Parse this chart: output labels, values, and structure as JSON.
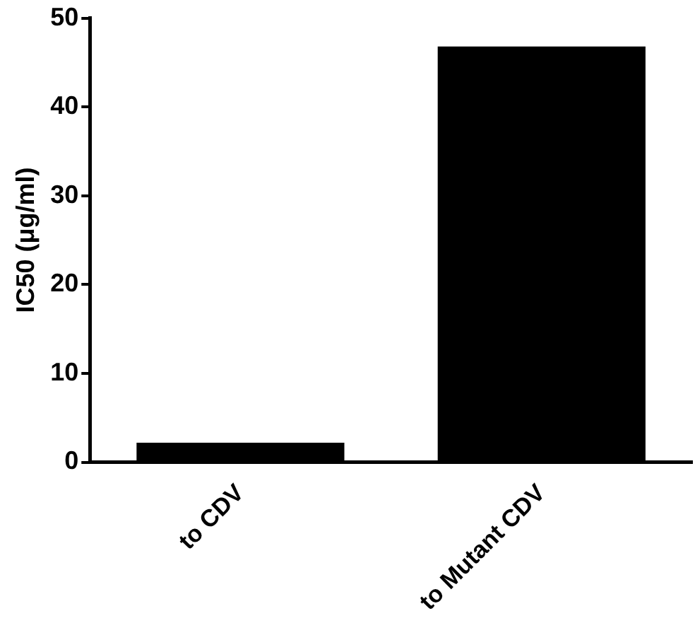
{
  "chart_data": {
    "type": "bar",
    "ylabel": "IC50 (μg/ml)",
    "categories": [
      "to CDV",
      "to Mutant CDV"
    ],
    "values": [
      2.2,
      46.8
    ],
    "color": "#000000",
    "ylim": [
      0,
      50
    ],
    "yticks": [
      0,
      10,
      20,
      30,
      40,
      50
    ],
    "grid": false,
    "legend": false
  }
}
